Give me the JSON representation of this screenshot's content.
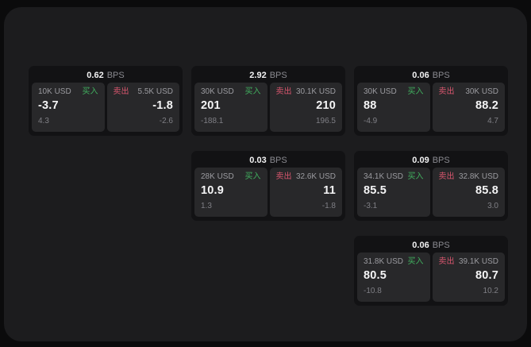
{
  "labels": {
    "bps": "BPS",
    "buy": "买入",
    "sell": "卖出"
  },
  "colors": {
    "buy": "#41b05f",
    "sell": "#d9566e",
    "panel_bg": "#1c1c1e",
    "card_bg": "#121214",
    "side_bg": "#28282a",
    "page_bg": "#0b0b0c"
  },
  "cards": [
    {
      "col": 1,
      "row": 1,
      "bps": "0.62",
      "buy": {
        "amount": "10K USD",
        "value": "-3.7",
        "sub": "4.3"
      },
      "sell": {
        "amount": "5.5K USD",
        "value": "-1.8",
        "sub": "-2.6"
      }
    },
    {
      "col": 2,
      "row": 1,
      "bps": "2.92",
      "buy": {
        "amount": "30K USD",
        "value": "201",
        "sub": "-188.1"
      },
      "sell": {
        "amount": "30.1K USD",
        "value": "210",
        "sub": "196.5"
      }
    },
    {
      "col": 3,
      "row": 1,
      "bps": "0.06",
      "buy": {
        "amount": "30K USD",
        "value": "88",
        "sub": "-4.9"
      },
      "sell": {
        "amount": "30K USD",
        "value": "88.2",
        "sub": "4.7"
      }
    },
    {
      "col": 2,
      "row": 2,
      "bps": "0.03",
      "buy": {
        "amount": "28K USD",
        "value": "10.9",
        "sub": "1.3"
      },
      "sell": {
        "amount": "32.6K USD",
        "value": "11",
        "sub": "-1.8"
      }
    },
    {
      "col": 3,
      "row": 2,
      "bps": "0.09",
      "buy": {
        "amount": "34.1K USD",
        "value": "85.5",
        "sub": "-3.1"
      },
      "sell": {
        "amount": "32.8K USD",
        "value": "85.8",
        "sub": "3.0"
      }
    },
    {
      "col": 3,
      "row": 3,
      "bps": "0.06",
      "buy": {
        "amount": "31.8K USD",
        "value": "80.5",
        "sub": "-10.8"
      },
      "sell": {
        "amount": "39.1K USD",
        "value": "80.7",
        "sub": "10.2"
      }
    }
  ]
}
